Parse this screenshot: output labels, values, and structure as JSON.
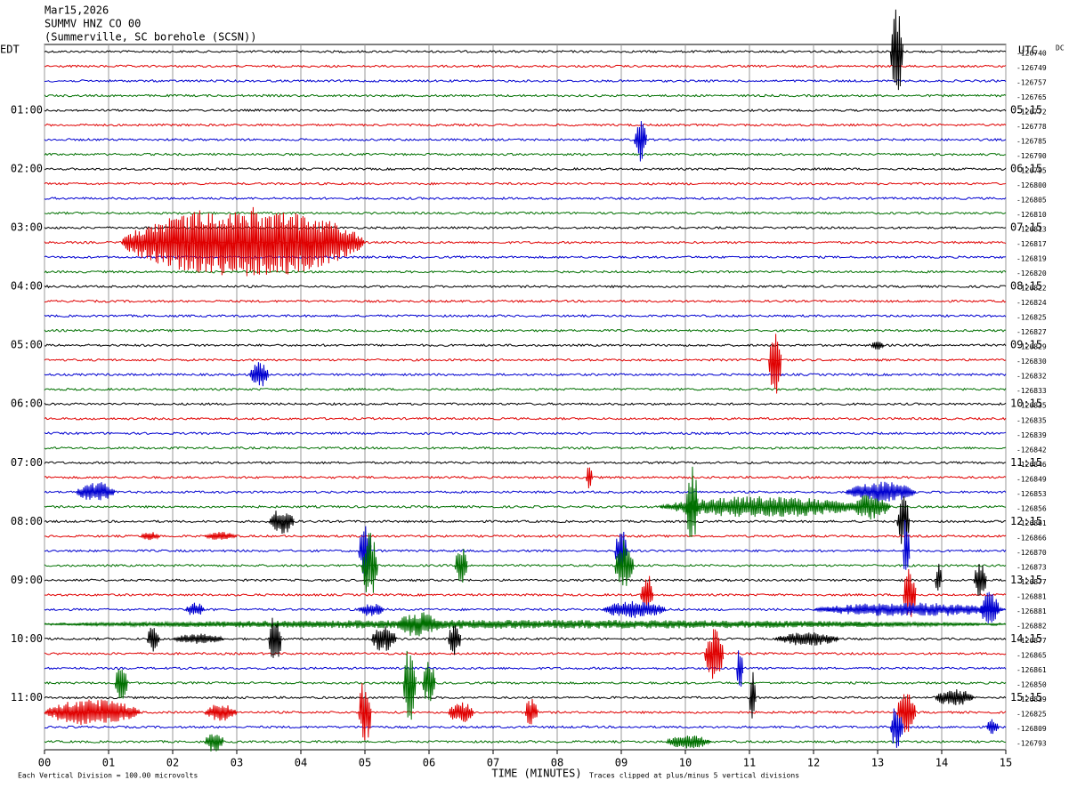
{
  "chart_data": {
    "type": "helicorder",
    "title": "Mar15,2026",
    "subtitle": "SUMMV HNZ CO 00",
    "station": "(Summerville, SC borehole (SCSN))",
    "left_axis_title": "EDT",
    "right_axis_title": "UTC",
    "dc_label": "DC",
    "x_axis_label": "TIME (MINUTES)",
    "scale_note": "Each Vertical Division =  100.00 microvolts",
    "clip_note": "Traces clipped at plus/minus 5 vertical divisions",
    "colors": [
      "#000000",
      "#e00000",
      "#0000d0",
      "#007000"
    ],
    "xlim": [
      0,
      15
    ],
    "xticks": [
      {
        "value": 0,
        "label": "00"
      },
      {
        "value": 1,
        "label": "01"
      },
      {
        "value": 2,
        "label": "02"
      },
      {
        "value": 3,
        "label": "03"
      },
      {
        "value": 4,
        "label": "04"
      },
      {
        "value": 5,
        "label": "05"
      },
      {
        "value": 6,
        "label": "06"
      },
      {
        "value": 7,
        "label": "07"
      },
      {
        "value": 8,
        "label": "08"
      },
      {
        "value": 9,
        "label": "09"
      },
      {
        "value": 10,
        "label": "10"
      },
      {
        "value": 11,
        "label": "11"
      },
      {
        "value": 12,
        "label": "12"
      },
      {
        "value": 13,
        "label": "13"
      },
      {
        "value": 14,
        "label": "14"
      },
      {
        "value": 15,
        "label": "15"
      }
    ],
    "grid": true,
    "rows": [
      {
        "left": null,
        "right": null,
        "offset": -126740
      },
      {
        "left": null,
        "right": null,
        "offset": -126749
      },
      {
        "left": null,
        "right": null,
        "offset": -126757
      },
      {
        "left": null,
        "right": null,
        "offset": -126765
      },
      {
        "left": "01:00",
        "right": "05:15",
        "offset": -126772
      },
      {
        "left": null,
        "right": null,
        "offset": -126778
      },
      {
        "left": null,
        "right": null,
        "offset": -126785
      },
      {
        "left": null,
        "right": null,
        "offset": -126790
      },
      {
        "left": "02:00",
        "right": "06:15",
        "offset": -126795
      },
      {
        "left": null,
        "right": null,
        "offset": -126800
      },
      {
        "left": null,
        "right": null,
        "offset": -126805
      },
      {
        "left": null,
        "right": null,
        "offset": -126810
      },
      {
        "left": "03:00",
        "right": "07:15",
        "offset": -126813
      },
      {
        "left": null,
        "right": null,
        "offset": -126817
      },
      {
        "left": null,
        "right": null,
        "offset": -126819
      },
      {
        "left": null,
        "right": null,
        "offset": -126820
      },
      {
        "left": "04:00",
        "right": "08:15",
        "offset": -126822
      },
      {
        "left": null,
        "right": null,
        "offset": -126824
      },
      {
        "left": null,
        "right": null,
        "offset": -126825
      },
      {
        "left": null,
        "right": null,
        "offset": -126827
      },
      {
        "left": "05:00",
        "right": "09:15",
        "offset": -126829
      },
      {
        "left": null,
        "right": null,
        "offset": -126830
      },
      {
        "left": null,
        "right": null,
        "offset": -126832
      },
      {
        "left": null,
        "right": null,
        "offset": -126833
      },
      {
        "left": "06:00",
        "right": "10:15",
        "offset": -126835
      },
      {
        "left": null,
        "right": null,
        "offset": -126835
      },
      {
        "left": null,
        "right": null,
        "offset": -126839
      },
      {
        "left": null,
        "right": null,
        "offset": -126842
      },
      {
        "left": "07:00",
        "right": "11:15",
        "offset": -126846
      },
      {
        "left": null,
        "right": null,
        "offset": -126849
      },
      {
        "left": null,
        "right": null,
        "offset": -126853
      },
      {
        "left": null,
        "right": null,
        "offset": -126856
      },
      {
        "left": "08:00",
        "right": "12:15",
        "offset": -126861
      },
      {
        "left": null,
        "right": null,
        "offset": -126866
      },
      {
        "left": null,
        "right": null,
        "offset": -126870
      },
      {
        "left": null,
        "right": null,
        "offset": -126873
      },
      {
        "left": "09:00",
        "right": "13:15",
        "offset": -126877
      },
      {
        "left": null,
        "right": null,
        "offset": -126881
      },
      {
        "left": null,
        "right": null,
        "offset": -126881
      },
      {
        "left": null,
        "right": null,
        "offset": -126882
      },
      {
        "left": "10:00",
        "right": "14:15",
        "offset": -126877
      },
      {
        "left": null,
        "right": null,
        "offset": -126865
      },
      {
        "left": null,
        "right": null,
        "offset": -126861
      },
      {
        "left": null,
        "right": null,
        "offset": -126850
      },
      {
        "left": "11:00",
        "right": "15:15",
        "offset": -126839
      },
      {
        "left": null,
        "right": null,
        "offset": -126825
      },
      {
        "left": null,
        "right": null,
        "offset": -126809
      },
      {
        "left": null,
        "right": null,
        "offset": -126793
      }
    ],
    "events": [
      {
        "row": 0,
        "start": 13.2,
        "end": 13.4,
        "amplitude": 5
      },
      {
        "row": 6,
        "start": 9.2,
        "end": 9.4,
        "amplitude": 2.5
      },
      {
        "row": 13,
        "start": 1.2,
        "end": 5.0,
        "amplitude": 4
      },
      {
        "row": 20,
        "start": 12.9,
        "end": 13.1,
        "amplitude": 0.5
      },
      {
        "row": 21,
        "start": 11.3,
        "end": 11.5,
        "amplitude": 4
      },
      {
        "row": 22,
        "start": 3.2,
        "end": 3.5,
        "amplitude": 1.5
      },
      {
        "row": 29,
        "start": 8.45,
        "end": 8.55,
        "amplitude": 1.5
      },
      {
        "row": 30,
        "start": 0.5,
        "end": 1.1,
        "amplitude": 1.2
      },
      {
        "row": 30,
        "start": 12.5,
        "end": 13.6,
        "amplitude": 1.2
      },
      {
        "row": 31,
        "start": 9.6,
        "end": 12.8,
        "amplitude": 1.2
      },
      {
        "row": 31,
        "start": 10.0,
        "end": 10.2,
        "amplitude": 5
      },
      {
        "row": 31,
        "start": 12.6,
        "end": 13.2,
        "amplitude": 1.5
      },
      {
        "row": 32,
        "start": 3.5,
        "end": 3.9,
        "amplitude": 1.5
      },
      {
        "row": 32,
        "start": 13.3,
        "end": 13.5,
        "amplitude": 3
      },
      {
        "row": 33,
        "start": 1.5,
        "end": 1.8,
        "amplitude": 0.5
      },
      {
        "row": 33,
        "start": 2.5,
        "end": 3.0,
        "amplitude": 0.5
      },
      {
        "row": 34,
        "start": 4.9,
        "end": 5.1,
        "amplitude": 3.5
      },
      {
        "row": 34,
        "start": 8.9,
        "end": 9.1,
        "amplitude": 2.5
      },
      {
        "row": 34,
        "start": 13.4,
        "end": 13.5,
        "amplitude": 5
      },
      {
        "row": 35,
        "start": 4.95,
        "end": 5.2,
        "amplitude": 4
      },
      {
        "row": 35,
        "start": 6.4,
        "end": 6.6,
        "amplitude": 2.5
      },
      {
        "row": 35,
        "start": 8.9,
        "end": 9.2,
        "amplitude": 3
      },
      {
        "row": 36,
        "start": 13.9,
        "end": 14.0,
        "amplitude": 2
      },
      {
        "row": 36,
        "start": 14.5,
        "end": 14.7,
        "amplitude": 2
      },
      {
        "row": 37,
        "start": 9.3,
        "end": 9.5,
        "amplitude": 2.5
      },
      {
        "row": 37,
        "start": 13.4,
        "end": 13.6,
        "amplitude": 3.5
      },
      {
        "row": 38,
        "start": 2.2,
        "end": 2.5,
        "amplitude": 0.8
      },
      {
        "row": 38,
        "start": 4.9,
        "end": 5.3,
        "amplitude": 0.8
      },
      {
        "row": 38,
        "start": 8.7,
        "end": 9.7,
        "amplitude": 1
      },
      {
        "row": 38,
        "start": 12.0,
        "end": 15.0,
        "amplitude": 0.8
      },
      {
        "row": 38,
        "start": 14.6,
        "end": 14.9,
        "amplitude": 2
      },
      {
        "row": 39,
        "start": 0.0,
        "end": 15.0,
        "amplitude": 0.5
      },
      {
        "row": 39,
        "start": 5.5,
        "end": 6.2,
        "amplitude": 1.5
      },
      {
        "row": 40,
        "start": 1.6,
        "end": 1.8,
        "amplitude": 1.5
      },
      {
        "row": 40,
        "start": 2.0,
        "end": 2.8,
        "amplitude": 0.6
      },
      {
        "row": 40,
        "start": 3.5,
        "end": 3.7,
        "amplitude": 3
      },
      {
        "row": 40,
        "start": 5.1,
        "end": 5.5,
        "amplitude": 1.5
      },
      {
        "row": 40,
        "start": 6.3,
        "end": 6.5,
        "amplitude": 2
      },
      {
        "row": 40,
        "start": 11.4,
        "end": 12.4,
        "amplitude": 0.8
      },
      {
        "row": 41,
        "start": 10.3,
        "end": 10.6,
        "amplitude": 3
      },
      {
        "row": 42,
        "start": 10.8,
        "end": 10.9,
        "amplitude": 2.5
      },
      {
        "row": 43,
        "start": 1.1,
        "end": 1.3,
        "amplitude": 2
      },
      {
        "row": 43,
        "start": 5.6,
        "end": 5.8,
        "amplitude": 4.5
      },
      {
        "row": 43,
        "start": 5.9,
        "end": 6.1,
        "amplitude": 2.5
      },
      {
        "row": 44,
        "start": 11.0,
        "end": 11.1,
        "amplitude": 3
      },
      {
        "row": 44,
        "start": 13.9,
        "end": 14.5,
        "amplitude": 1
      },
      {
        "row": 45,
        "start": 0.0,
        "end": 1.5,
        "amplitude": 1.5
      },
      {
        "row": 45,
        "start": 2.5,
        "end": 3.0,
        "amplitude": 1
      },
      {
        "row": 45,
        "start": 4.9,
        "end": 5.1,
        "amplitude": 4
      },
      {
        "row": 45,
        "start": 6.3,
        "end": 6.7,
        "amplitude": 1.2
      },
      {
        "row": 45,
        "start": 7.5,
        "end": 7.7,
        "amplitude": 1.8
      },
      {
        "row": 45,
        "start": 13.3,
        "end": 13.6,
        "amplitude": 2.5
      },
      {
        "row": 46,
        "start": 13.2,
        "end": 13.4,
        "amplitude": 2.5
      },
      {
        "row": 46,
        "start": 14.7,
        "end": 14.9,
        "amplitude": 1
      },
      {
        "row": 47,
        "start": 2.5,
        "end": 2.8,
        "amplitude": 1.2
      },
      {
        "row": 47,
        "start": 9.7,
        "end": 10.4,
        "amplitude": 0.8
      }
    ]
  }
}
